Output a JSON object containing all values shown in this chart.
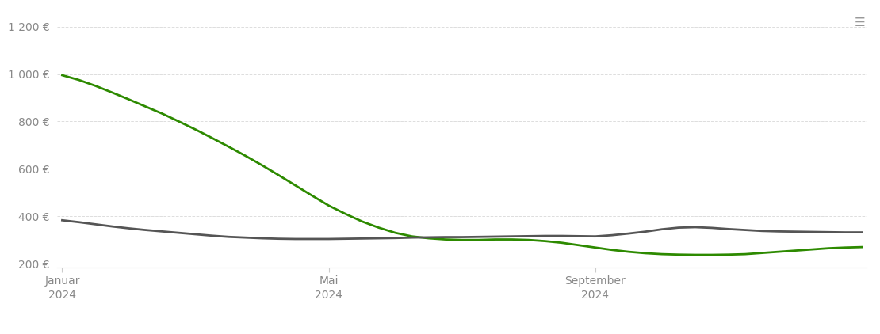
{
  "lose_ware_x": [
    0,
    1,
    2,
    3,
    4,
    5,
    6,
    7,
    8,
    9,
    10,
    11,
    12,
    13,
    14,
    15,
    16,
    17,
    18,
    19,
    20,
    21,
    22,
    23,
    24,
    25,
    26,
    27,
    28,
    29,
    30,
    31,
    32,
    33,
    34,
    35,
    36,
    37,
    38,
    39,
    40,
    41,
    42,
    43,
    44,
    45,
    46,
    47,
    48
  ],
  "lose_ware_y": [
    995,
    975,
    950,
    922,
    893,
    863,
    833,
    800,
    766,
    730,
    693,
    655,
    615,
    573,
    530,
    487,
    445,
    410,
    378,
    352,
    330,
    315,
    307,
    302,
    300,
    300,
    302,
    302,
    300,
    295,
    288,
    278,
    268,
    258,
    250,
    244,
    240,
    238,
    237,
    237,
    238,
    240,
    245,
    250,
    255,
    260,
    265,
    268,
    270
  ],
  "sack_ware_x": [
    0,
    1,
    2,
    3,
    4,
    5,
    6,
    7,
    8,
    9,
    10,
    11,
    12,
    13,
    14,
    15,
    16,
    17,
    18,
    19,
    20,
    21,
    22,
    23,
    24,
    25,
    26,
    27,
    28,
    29,
    30,
    31,
    32,
    33,
    34,
    35,
    36,
    37,
    38,
    39,
    40,
    41,
    42,
    43,
    44,
    45,
    46,
    47,
    48
  ],
  "sack_ware_y": [
    383,
    375,
    366,
    357,
    349,
    342,
    336,
    330,
    324,
    318,
    313,
    310,
    307,
    305,
    304,
    304,
    304,
    305,
    306,
    307,
    308,
    310,
    311,
    312,
    312,
    313,
    314,
    315,
    316,
    317,
    317,
    316,
    315,
    320,
    327,
    335,
    345,
    352,
    354,
    351,
    346,
    342,
    338,
    336,
    335,
    334,
    333,
    332,
    332
  ],
  "x_ticks": [
    0,
    16,
    32
  ],
  "x_tick_labels": [
    "Januar\n2024",
    "Mai\n2024",
    "September\n2024"
  ],
  "y_ticks": [
    200,
    400,
    600,
    800,
    1000,
    1200
  ],
  "y_tick_labels": [
    "200 €",
    "400 €",
    "600 €",
    "800 €",
    "1 000 €",
    "1 200 €"
  ],
  "ylim": [
    185,
    1270
  ],
  "xlim": [
    -0.3,
    48.3
  ],
  "lose_ware_color": "#2d8a00",
  "sack_ware_color": "#555555",
  "background_color": "#ffffff",
  "grid_color": "#dddddd",
  "line_width": 2.0,
  "tick_fontsize": 10,
  "tick_color": "#888888"
}
